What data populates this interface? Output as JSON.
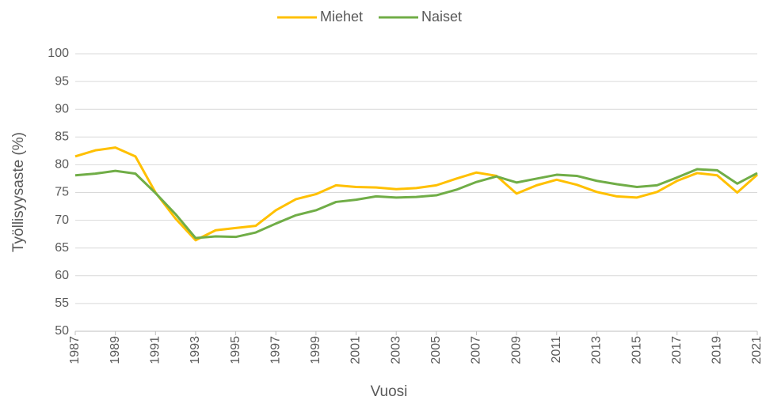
{
  "chart_data": {
    "type": "line",
    "x": [
      1987,
      1988,
      1989,
      1990,
      1991,
      1992,
      1993,
      1994,
      1995,
      1996,
      1997,
      1998,
      1999,
      2000,
      2001,
      2002,
      2003,
      2004,
      2005,
      2006,
      2007,
      2008,
      2009,
      2010,
      2011,
      2012,
      2013,
      2014,
      2015,
      2016,
      2017,
      2018,
      2019,
      2020,
      2021
    ],
    "series": [
      {
        "name": "Miehet",
        "color": "#FFC000",
        "values": [
          81.5,
          82.6,
          83.1,
          81.5,
          75,
          70.3,
          66.4,
          68.2,
          68.6,
          69,
          71.8,
          73.8,
          74.7,
          76.3,
          76,
          75.9,
          75.6,
          75.8,
          76.3,
          77.5,
          78.6,
          78,
          74.8,
          76.3,
          77.3,
          76.4,
          75.1,
          74.3,
          74.1,
          75.1,
          77.1,
          78.5,
          78.1,
          75,
          78.2
        ]
      },
      {
        "name": "Naiset",
        "color": "#70AD47",
        "values": [
          78.1,
          78.4,
          78.9,
          78.4,
          74.9,
          71.1,
          66.8,
          67.1,
          67,
          67.8,
          69.4,
          70.9,
          71.8,
          73.3,
          73.7,
          74.3,
          74.1,
          74.2,
          74.5,
          75.5,
          76.9,
          77.9,
          76.8,
          77.5,
          78.2,
          78,
          77.1,
          76.5,
          76,
          76.3,
          77.7,
          79.2,
          79,
          76.6,
          78.5
        ]
      }
    ],
    "xlim": [
      1987,
      2021
    ],
    "xticks": [
      1987,
      1989,
      1991,
      1993,
      1995,
      1997,
      1999,
      2001,
      2003,
      2005,
      2007,
      2009,
      2011,
      2013,
      2015,
      2017,
      2019,
      2021
    ],
    "ylim": [
      50,
      100
    ],
    "yticks": [
      50,
      55,
      60,
      65,
      70,
      75,
      80,
      85,
      90,
      95,
      100
    ],
    "xlabel": "Vuosi",
    "ylabel": "Työllisyysaste (%)",
    "grid": true,
    "legend": "top"
  }
}
